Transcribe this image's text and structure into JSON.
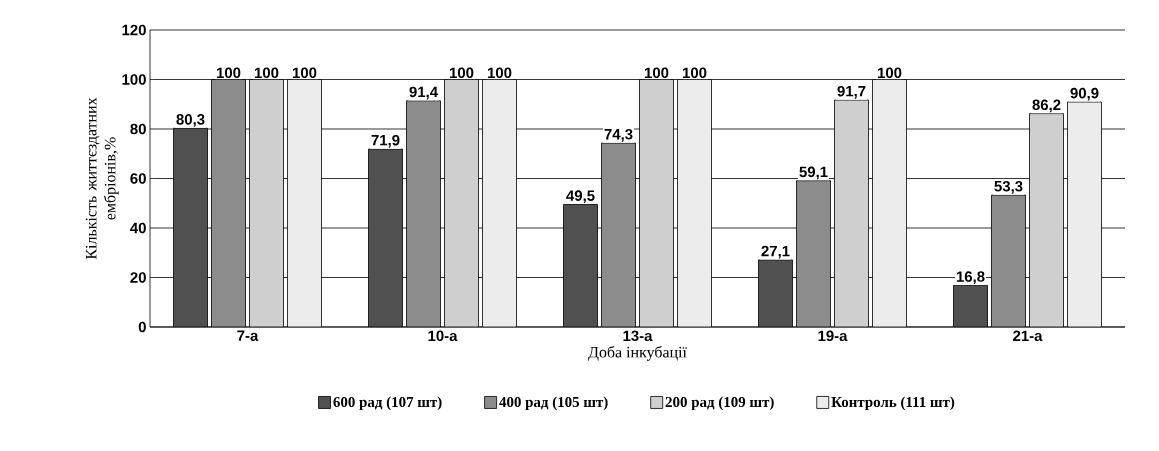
{
  "chart_data": {
    "type": "bar",
    "xlabel": "Доба інкубації",
    "ylabel": "Кількість життєздатних ембріонів,%",
    "categories": [
      "7-а",
      "10-а",
      "13-а",
      "19-а",
      "21-а"
    ],
    "series": [
      {
        "name": "600 рад (107 шт)",
        "color": "#505050",
        "values": [
          80.3,
          71.9,
          49.5,
          27.1,
          16.8
        ],
        "value_labels": [
          "80,3",
          "71,9",
          "49,5",
          "27,1",
          "16,8"
        ]
      },
      {
        "name": "400 рад (105 шт)",
        "color": "#8c8c8c",
        "values": [
          100,
          91.4,
          74.3,
          59.1,
          53.3
        ],
        "value_labels": [
          "100",
          "91,4",
          "74,3",
          "59,1",
          "53,3"
        ]
      },
      {
        "name": "200 рад (109 шт)",
        "color": "#cfcfcf",
        "values": [
          100,
          100,
          100,
          91.7,
          86.2
        ],
        "value_labels": [
          "100",
          "100",
          "100",
          "91,7",
          "86,2"
        ]
      },
      {
        "name": "Контроль (111 шт)",
        "color": "#ececec",
        "values": [
          100,
          100,
          100,
          100,
          90.9
        ],
        "value_labels": [
          "100",
          "100",
          "100",
          "100",
          "90,9"
        ]
      }
    ],
    "ylim": [
      0,
      120
    ],
    "yticks": [
      0,
      20,
      40,
      60,
      80,
      100,
      120
    ],
    "grid": "y",
    "legend": "bottom"
  }
}
